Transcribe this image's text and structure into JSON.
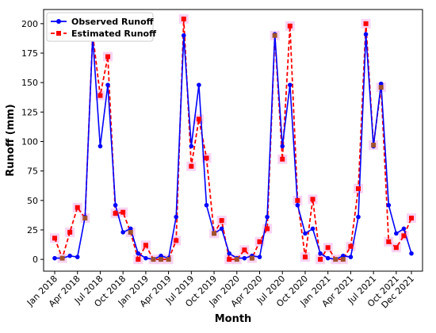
{
  "chart_data": {
    "type": "line",
    "xlabel": "Month",
    "ylabel": "Runoff (mm)",
    "ylim": [
      -10,
      212
    ],
    "yticks": [
      0,
      25,
      50,
      75,
      100,
      125,
      150,
      175,
      200
    ],
    "xtick_labels": [
      "Jan 2018",
      "Apr 2018",
      "Jul 2018",
      "Oct 2018",
      "Jan 2019",
      "Apr 2019",
      "Jul 2019",
      "Oct 2019",
      "Jan 2020",
      "Apr 2020",
      "Jul 2020",
      "Oct 2020",
      "Jan 2021",
      "Apr 2021",
      "Jul 2021",
      "Oct 2021",
      "Dec 2021"
    ],
    "xtick_month_index": [
      0,
      3,
      6,
      9,
      12,
      15,
      18,
      21,
      24,
      27,
      30,
      33,
      36,
      39,
      42,
      45,
      47
    ],
    "legend_position": "upper-left",
    "series": [
      {
        "name": "Observed Runoff",
        "color": "#0000ff",
        "line_style": "solid",
        "marker": "circle",
        "values": [
          1,
          1,
          3,
          2,
          36,
          189,
          96,
          148,
          46,
          23,
          26,
          5,
          1,
          0,
          3,
          1,
          36,
          190,
          96,
          148,
          46,
          22,
          26,
          5,
          1,
          1,
          3,
          2,
          36,
          191,
          96,
          148,
          46,
          22,
          26,
          5,
          1,
          0,
          3,
          2,
          36,
          191,
          96,
          149,
          46,
          22,
          26,
          5
        ]
      },
      {
        "name": "Estimated Runoff",
        "color": "#ff0000",
        "line_style": "dashed",
        "marker": "square",
        "values": [
          18,
          1,
          23,
          44,
          35,
          191,
          139,
          172,
          39,
          40,
          23,
          0,
          12,
          0,
          0,
          0,
          16,
          204,
          79,
          119,
          86,
          22,
          33,
          0,
          0,
          8,
          1,
          15,
          26,
          190,
          85,
          198,
          50,
          2,
          51,
          0,
          10,
          0,
          0,
          11,
          60,
          200,
          97,
          146,
          15,
          10,
          20,
          35
        ]
      }
    ]
  }
}
